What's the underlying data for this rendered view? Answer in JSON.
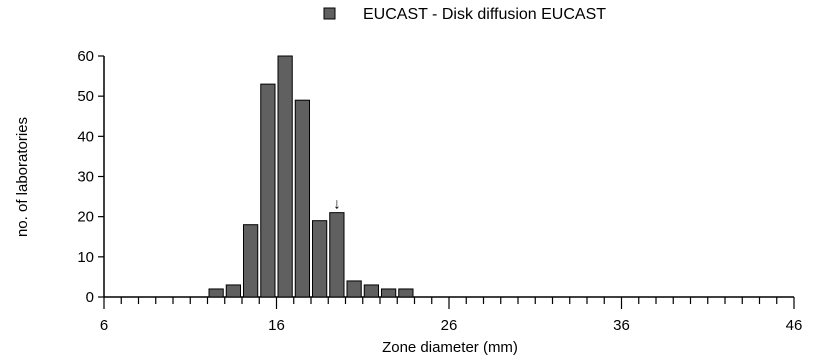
{
  "chart_data": {
    "type": "bar",
    "title": "",
    "xlabel": "Zone diameter (mm)",
    "ylabel": "no. of laboratories",
    "xlim": [
      6,
      46
    ],
    "ylim": [
      0,
      60
    ],
    "x_ticks": [
      6,
      16,
      26,
      36,
      46
    ],
    "y_ticks": [
      0,
      10,
      20,
      30,
      40,
      50,
      60
    ],
    "grid": false,
    "legend_position": "top-center",
    "series": [
      {
        "name": "EUCAST - Disk diffusion EUCAST",
        "color": "#606060",
        "x": [
          12,
          13,
          14,
          15,
          16,
          17,
          18,
          19,
          20,
          21,
          22,
          23
        ],
        "values": [
          2,
          3,
          18,
          53,
          60,
          49,
          19,
          21,
          4,
          3,
          2,
          2
        ]
      }
    ],
    "annotations": [
      {
        "type": "arrow-down",
        "x": 19,
        "symbol": "↓"
      }
    ]
  }
}
